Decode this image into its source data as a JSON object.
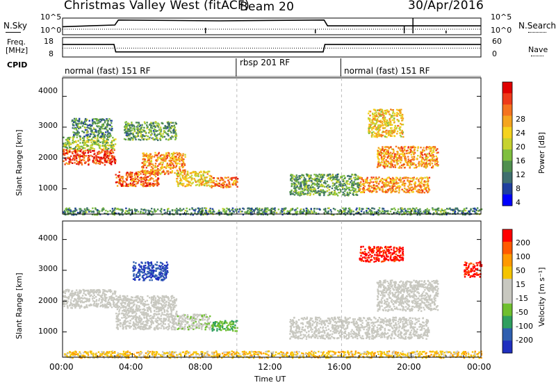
{
  "header": {
    "title": "Christmas Valley West (fitACF)",
    "beam": "Beam 20",
    "date": "30/Apr/2016"
  },
  "noise_panel": {
    "left_label": "N.Sky",
    "right_label": "N.Search",
    "ticks": [
      "10^5",
      "10^0"
    ]
  },
  "freq_panel": {
    "left_label_1": "Freq.",
    "left_label_2": "[MHz]",
    "left_ticks": [
      "18",
      "8"
    ],
    "right_label": "Nave",
    "right_ticks": [
      "60",
      "0"
    ]
  },
  "cpid": {
    "label": "CPID",
    "segments": [
      {
        "start_hr": 0,
        "end_hr": 10,
        "text": "normal (fast) 151 RF"
      },
      {
        "start_hr": 10,
        "end_hr": 16,
        "text": "rbsp 201 RF"
      },
      {
        "start_hr": 16,
        "end_hr": 24,
        "text": "normal (fast) 151 RF"
      }
    ]
  },
  "colors": {
    "power": [
      "#0000ff",
      "#1f3f9f",
      "#3f6f6f",
      "#4f8f4f",
      "#7fbf3f",
      "#c7d22f",
      "#f5d31f",
      "#f5a51f",
      "#f5731f",
      "#ee3a1a",
      "#e00000"
    ],
    "velocity": [
      "#ff0000",
      "#ff5a00",
      "#ff9900",
      "#f5c400",
      "#c8c8c0",
      "#c8c8c0",
      "#6fbf2f",
      "#2f9f5f",
      "#2f5faf",
      "#1f2fbf"
    ]
  },
  "chart_data": [
    {
      "type": "line",
      "name": "noise",
      "title": "",
      "series": [
        {
          "name": "N.Sky",
          "points": [
            [
              0,
              0.8
            ],
            [
              3,
              1.0
            ],
            [
              3.2,
              1.6
            ],
            [
              9,
              1.5
            ],
            [
              15,
              1.6
            ],
            [
              15.2,
              0.9
            ],
            [
              24,
              0.9
            ]
          ]
        },
        {
          "name": "N.Search",
          "points": [
            [
              0,
              0.5
            ],
            [
              24,
              0.5
            ]
          ]
        }
      ]
    },
    {
      "type": "line",
      "name": "frequency",
      "xlabel": "",
      "ylabel": "Freq. [MHz]",
      "ylim": [
        8,
        18
      ],
      "y2label": "Nave",
      "y2lim": [
        0,
        60
      ],
      "series": [
        {
          "name": "Freq.",
          "points": [
            [
              0,
              14.7
            ],
            [
              2.95,
              14.7
            ],
            [
              3.05,
              10.2
            ],
            [
              14.95,
              10.2
            ],
            [
              15.05,
              14.7
            ],
            [
              24,
              14.7
            ]
          ]
        },
        {
          "name": "Nave",
          "points": [
            [
              0,
              12.5
            ],
            [
              24,
              12.5
            ]
          ]
        }
      ]
    },
    {
      "type": "heatmap",
      "name": "power",
      "xlabel": "",
      "ylabel": "Slant Range [km]",
      "xticks": [],
      "yticks": [
        "1000",
        "2000",
        "3000",
        "4000"
      ],
      "ylim": [
        180,
        4600
      ],
      "xlim_hr": [
        0,
        24
      ],
      "colorbar": {
        "label": "Power [dB]",
        "ticks": [
          "4",
          "8",
          "12",
          "16",
          "20",
          "24",
          "28"
        ]
      },
      "blobs": [
        {
          "h0": 0.0,
          "h1": 3.0,
          "r0": 1800,
          "r1": 2300,
          "v": 0.85
        },
        {
          "h0": 0.0,
          "h1": 3.0,
          "r0": 2300,
          "r1": 2700,
          "v": 0.45
        },
        {
          "h0": 0.5,
          "h1": 2.8,
          "r0": 2700,
          "r1": 3300,
          "v": 0.3
        },
        {
          "h0": 3.0,
          "h1": 5.5,
          "r0": 1100,
          "r1": 1600,
          "v": 0.8
        },
        {
          "h0": 4.5,
          "h1": 7.0,
          "r0": 1500,
          "r1": 2200,
          "v": 0.7
        },
        {
          "h0": 6.5,
          "h1": 8.5,
          "r0": 1100,
          "r1": 1600,
          "v": 0.6
        },
        {
          "h0": 8.5,
          "h1": 10.0,
          "r0": 1050,
          "r1": 1400,
          "v": 0.75
        },
        {
          "h0": 3.5,
          "h1": 6.5,
          "r0": 2600,
          "r1": 3200,
          "v": 0.35
        },
        {
          "h0": 13.0,
          "h1": 17.0,
          "r0": 800,
          "r1": 1500,
          "v": 0.35
        },
        {
          "h0": 17.0,
          "h1": 21.0,
          "r0": 900,
          "r1": 1400,
          "v": 0.7
        },
        {
          "h0": 18.0,
          "h1": 21.5,
          "r0": 1700,
          "r1": 2400,
          "v": 0.7
        },
        {
          "h0": 17.5,
          "h1": 19.5,
          "r0": 2700,
          "r1": 3600,
          "v": 0.6
        },
        {
          "h0": 0.0,
          "h1": 24.0,
          "r0": 180,
          "r1": 400,
          "v": 0.3
        }
      ]
    },
    {
      "type": "heatmap",
      "name": "velocity",
      "xlabel": "Time UT",
      "ylabel": "Slant Range [km]",
      "xticks": [
        "00:00",
        "04:00",
        "08:00",
        "12:00",
        "16:00",
        "20:00",
        "00:00"
      ],
      "yticks": [
        "1000",
        "2000",
        "3000",
        "4000"
      ],
      "ylim": [
        180,
        4600
      ],
      "xlim_hr": [
        0,
        24
      ],
      "colorbar": {
        "label": "Velocity [m s⁻¹]",
        "ticks": [
          "200",
          "100",
          "50",
          "15",
          "-15",
          "-50",
          "-100",
          "-200"
        ]
      },
      "blobs": [
        {
          "h0": 0.0,
          "h1": 3.0,
          "r0": 1800,
          "r1": 2400,
          "v": 0.5
        },
        {
          "h0": 3.0,
          "h1": 6.5,
          "r0": 1100,
          "r1": 2200,
          "v": 0.5
        },
        {
          "h0": 6.5,
          "h1": 8.5,
          "r0": 1100,
          "r1": 1600,
          "v": 0.55
        },
        {
          "h0": 8.5,
          "h1": 10.0,
          "r0": 1050,
          "r1": 1400,
          "v": 0.7
        },
        {
          "h0": 4.0,
          "h1": 6.0,
          "r0": 2700,
          "r1": 3300,
          "v": 0.9
        },
        {
          "h0": 13.0,
          "h1": 21.0,
          "r0": 800,
          "r1": 1500,
          "v": 0.5
        },
        {
          "h0": 18.0,
          "h1": 21.5,
          "r0": 1700,
          "r1": 2700,
          "v": 0.5
        },
        {
          "h0": 17.0,
          "h1": 19.5,
          "r0": 3300,
          "r1": 3800,
          "v": 0.05
        },
        {
          "h0": 23.0,
          "h1": 24.0,
          "r0": 2800,
          "r1": 3300,
          "v": 0.05
        },
        {
          "h0": 0.0,
          "h1": 24.0,
          "r0": 180,
          "r1": 400,
          "v": 0.35
        }
      ]
    }
  ]
}
